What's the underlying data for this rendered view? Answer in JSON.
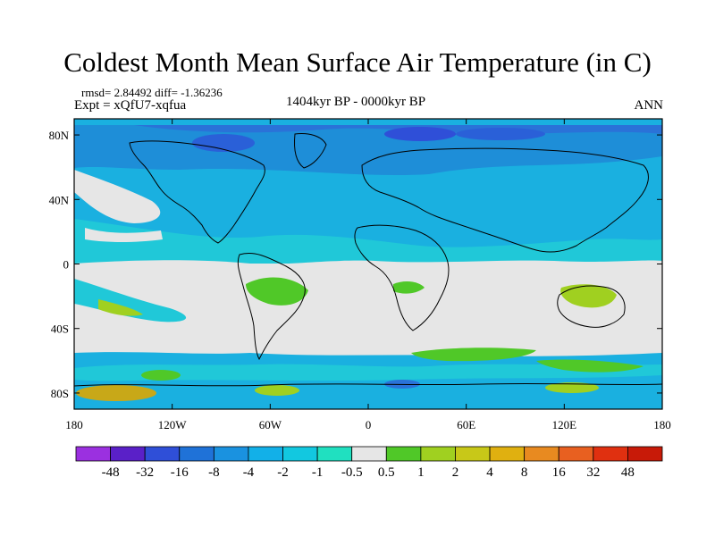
{
  "title": "Coldest Month Mean Surface Air Temperature (in C)",
  "stats_text": "rmsd= 2.84492 diff= -1.36236",
  "expt_text": "Expt = xQfU7-xqfua",
  "period_text": "1404kyr BP - 0000kyr BP",
  "season_text": "ANN",
  "x_tick_labels": [
    "180",
    "120W",
    "60W",
    "0",
    "60E",
    "120E",
    "180"
  ],
  "y_tick_labels": [
    "80N",
    "40N",
    "0",
    "40S",
    "80S"
  ],
  "colorbar": {
    "labels": [
      "-48",
      "-32",
      "-16",
      "-8",
      "-4",
      "-2",
      "-1",
      "-0.5",
      "0.5",
      "1",
      "2",
      "4",
      "8",
      "16",
      "32",
      "48"
    ],
    "colors": [
      "#9b30e0",
      "#5a20c8",
      "#2f4fd8",
      "#1f72d8",
      "#1a92e0",
      "#12b0e8",
      "#12c8e0",
      "#20e0c0",
      "#e6e6e6",
      "#50c828",
      "#a0d020",
      "#c8c818",
      "#e0b010",
      "#e88a20",
      "#e86020",
      "#e03010",
      "#c81a08"
    ]
  },
  "chart_data": {
    "type": "heatmap",
    "title": "Coldest Month Mean Surface Air Temperature (in C)",
    "xlim": [
      -180,
      180
    ],
    "ylim": [
      -90,
      90
    ],
    "x_ticks": [
      "180",
      "120W",
      "60W",
      "0",
      "60E",
      "120E",
      "180"
    ],
    "y_ticks": [
      "80N",
      "40N",
      "0",
      "40S",
      "80S"
    ],
    "levels": [
      -48,
      -32,
      -16,
      -8,
      -4,
      -2,
      -1,
      -0.5,
      0.5,
      1,
      2,
      4,
      8,
      16,
      32,
      48
    ]
  }
}
